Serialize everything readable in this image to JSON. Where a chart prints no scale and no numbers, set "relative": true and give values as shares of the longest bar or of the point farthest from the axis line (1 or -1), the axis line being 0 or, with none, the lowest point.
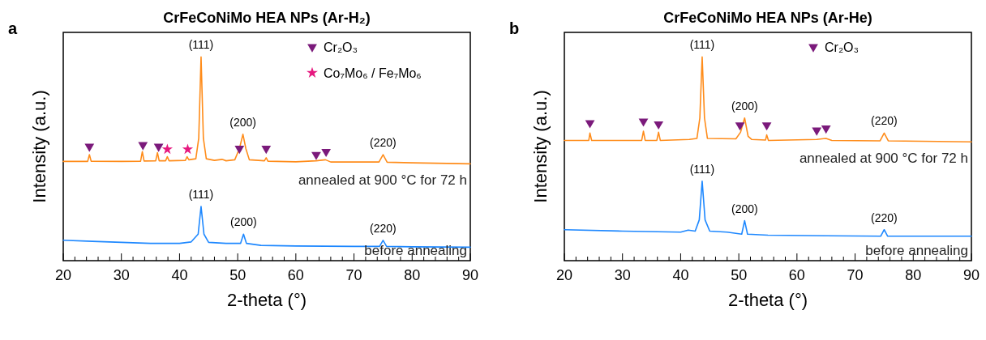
{
  "chart_data": [
    {
      "type": "line",
      "title": "CrFeCoNiMo HEA NPs (Ar-H₂)",
      "xlabel": "2-theta (°)",
      "ylabel": "Intensity (a.u.)",
      "relative": true,
      "xlim": [
        20,
        90
      ],
      "xticks": [
        20,
        {
          "value": 22,
          "label": null
        },
        {
          "value": 24,
          "label": null
        },
        {
          "value": 26,
          "label": null
        },
        {
          "value": 28,
          "label": null
        },
        30,
        {
          "value": 32,
          "label": null
        },
        {
          "value": 34,
          "label": null
        },
        {
          "value": 36,
          "label": null
        },
        {
          "value": 38,
          "label": null
        },
        40,
        {
          "value": 42,
          "label": null
        },
        {
          "value": 44,
          "label": null
        },
        {
          "value": 46,
          "label": null
        },
        {
          "value": 48,
          "label": null
        },
        50,
        {
          "value": 52,
          "label": null
        },
        {
          "value": 54,
          "label": null
        },
        {
          "value": 56,
          "label": null
        },
        {
          "value": 58,
          "label": null
        },
        60,
        {
          "value": 62,
          "label": null
        },
        {
          "value": 64,
          "label": null
        },
        {
          "value": 66,
          "label": null
        },
        {
          "value": 68,
          "label": null
        },
        70,
        {
          "value": 72,
          "label": null
        },
        {
          "value": 74,
          "label": null
        },
        {
          "value": 76,
          "label": null
        },
        {
          "value": 78,
          "label": null
        },
        80,
        {
          "value": 82,
          "label": null
        },
        {
          "value": 84,
          "label": null
        },
        {
          "value": 86,
          "label": null
        },
        {
          "value": 88,
          "label": null
        },
        90
      ],
      "tick_labels": "x",
      "legend": "top right",
      "series": [
        {
          "name": "annealed at 900 °C for 72 h",
          "color": "#ff8c1a",
          "x": [
            20,
            24.2,
            24.5,
            24.8,
            30,
            33.3,
            33.6,
            33.9,
            35.9,
            36.2,
            36.5,
            37.6,
            37.9,
            38.2,
            41.0,
            41.3,
            41.6,
            42.8,
            43.3,
            43.7,
            44.1,
            44.6,
            46,
            47.3,
            48,
            49.5,
            50.3,
            50.9,
            51.4,
            52,
            54.6,
            54.9,
            55.2,
            60,
            63.5,
            65.1,
            66,
            74.3,
            75.0,
            75.7,
            80,
            90
          ],
          "values": [
            0.487,
            0.487,
            0.52,
            0.488,
            0.487,
            0.488,
            0.535,
            0.489,
            0.49,
            0.53,
            0.49,
            0.49,
            0.51,
            0.49,
            0.492,
            0.51,
            0.495,
            0.5,
            0.6,
            1.0,
            0.6,
            0.5,
            0.492,
            0.497,
            0.49,
            0.495,
            0.55,
            0.62,
            0.55,
            0.495,
            0.49,
            0.505,
            0.488,
            0.485,
            0.49,
            0.495,
            0.484,
            0.484,
            0.52,
            0.483,
            0.48,
            0.475
          ]
        },
        {
          "name": "before annealing",
          "color": "#1e88ff",
          "x": [
            20,
            25,
            30,
            35,
            40,
            42,
            43.2,
            43.7,
            44.2,
            45,
            48,
            50.5,
            51.0,
            51.5,
            54,
            60,
            70,
            74.4,
            75.0,
            75.6,
            80,
            90
          ],
          "values": [
            0.1,
            0.095,
            0.09,
            0.085,
            0.085,
            0.092,
            0.13,
            0.266,
            0.13,
            0.09,
            0.085,
            0.085,
            0.13,
            0.085,
            0.075,
            0.072,
            0.07,
            0.07,
            0.1,
            0.07,
            0.068,
            0.066
          ]
        },
        {
          "name": "Cr₂O₃",
          "type": "scatter",
          "marker": "triangle",
          "color": "#7b1a7b",
          "x": [
            24.5,
            33.7,
            36.4,
            50.3,
            54.9,
            63.5,
            65.2
          ],
          "values": [
            0.56,
            0.568,
            0.56,
            0.55,
            0.55,
            0.52,
            0.535
          ]
        },
        {
          "name": "Co₇Mo₆ / Fe₇Mo₆",
          "type": "scatter",
          "marker": "star",
          "color": "#e6197f",
          "x": [
            37.9,
            41.4
          ],
          "values": [
            0.546,
            0.546
          ]
        }
      ],
      "annotations": [
        "a",
        {
          "text": "(111)",
          "x": 43.7,
          "y": 1.0
        },
        {
          "text": "(200)",
          "x": 50.9,
          "y": 0.62
        },
        {
          "text": "(220)",
          "x": 75.0,
          "y": 0.52
        },
        {
          "text": "(111)",
          "x": 43.7,
          "y": 0.266
        },
        {
          "text": "(200)",
          "x": 51.0,
          "y": 0.13
        },
        {
          "text": "(220)",
          "x": 75.0,
          "y": 0.1
        }
      ]
    },
    {
      "type": "line",
      "title": "CrFeCoNiMo HEA NPs (Ar-He)",
      "xlabel": "2-theta (°)",
      "ylabel": "Intensity (a.u.)",
      "relative": true,
      "xlim": [
        20,
        90
      ],
      "xticks": [
        20,
        {
          "value": 22,
          "label": null
        },
        {
          "value": 24,
          "label": null
        },
        {
          "value": 26,
          "label": null
        },
        {
          "value": 28,
          "label": null
        },
        30,
        {
          "value": 32,
          "label": null
        },
        {
          "value": 34,
          "label": null
        },
        {
          "value": 36,
          "label": null
        },
        {
          "value": 38,
          "label": null
        },
        40,
        {
          "value": 42,
          "label": null
        },
        {
          "value": 44,
          "label": null
        },
        {
          "value": 46,
          "label": null
        },
        {
          "value": 48,
          "label": null
        },
        50,
        {
          "value": 52,
          "label": null
        },
        {
          "value": 54,
          "label": null
        },
        {
          "value": 56,
          "label": null
        },
        {
          "value": 58,
          "label": null
        },
        60,
        {
          "value": 62,
          "label": null
        },
        {
          "value": 64,
          "label": null
        },
        {
          "value": 66,
          "label": null
        },
        {
          "value": 68,
          "label": null
        },
        70,
        {
          "value": 72,
          "label": null
        },
        {
          "value": 74,
          "label": null
        },
        {
          "value": 76,
          "label": null
        },
        {
          "value": 78,
          "label": null
        },
        80,
        {
          "value": 82,
          "label": null
        },
        {
          "value": 84,
          "label": null
        },
        {
          "value": 86,
          "label": null
        },
        {
          "value": 88,
          "label": null
        },
        90
      ],
      "tick_labels": "x",
      "legend": "top right",
      "series": [
        {
          "name": "annealed at 900 °C for 72 h",
          "color": "#ff8c1a",
          "x": [
            20,
            24.2,
            24.4,
            24.7,
            33.3,
            33.6,
            33.9,
            35.9,
            36.2,
            36.5,
            41.5,
            42.8,
            43.3,
            43.7,
            44.1,
            44.6,
            49.5,
            50.3,
            51.0,
            51.6,
            52.2,
            54.6,
            54.8,
            55.1,
            63.4,
            65.0,
            66,
            74.3,
            75.0,
            75.7,
            90
          ],
          "values": [
            0.59,
            0.59,
            0.626,
            0.59,
            0.59,
            0.635,
            0.59,
            0.59,
            0.63,
            0.59,
            0.595,
            0.6,
            0.7,
            1.0,
            0.7,
            0.6,
            0.598,
            0.63,
            0.7,
            0.61,
            0.595,
            0.592,
            0.617,
            0.59,
            0.595,
            0.6,
            0.59,
            0.588,
            0.626,
            0.588,
            0.583
          ]
        },
        {
          "name": "before annealing",
          "color": "#1e88ff",
          "x": [
            20,
            30,
            40,
            41.3,
            42.5,
            43.2,
            43.7,
            44.2,
            45,
            48,
            50.5,
            51.0,
            51.5,
            55,
            65,
            74.4,
            75.0,
            75.6,
            90
          ],
          "values": [
            0.152,
            0.145,
            0.14,
            0.15,
            0.145,
            0.2,
            0.39,
            0.2,
            0.145,
            0.14,
            0.13,
            0.196,
            0.13,
            0.125,
            0.122,
            0.12,
            0.152,
            0.12,
            0.12
          ]
        },
        {
          "name": "Cr₂O₃",
          "type": "scatter",
          "marker": "triangle",
          "color": "#7b1a7b",
          "x": [
            24.4,
            33.6,
            36.2,
            50.2,
            54.8,
            63.4,
            65.0
          ],
          "values": [
            0.676,
            0.684,
            0.67,
            0.665,
            0.665,
            0.64,
            0.65
          ]
        }
      ],
      "annotations": [
        "b",
        {
          "text": "(111)",
          "x": 43.7,
          "y": 1.0
        },
        {
          "text": "(200)",
          "x": 51.0,
          "y": 0.7
        },
        {
          "text": "(220)",
          "x": 75.0,
          "y": 0.626
        },
        {
          "text": "(111)",
          "x": 43.7,
          "y": 0.39
        },
        {
          "text": "(200)",
          "x": 51.0,
          "y": 0.196
        },
        {
          "text": "(220)",
          "x": 75.0,
          "y": 0.152
        }
      ]
    }
  ]
}
